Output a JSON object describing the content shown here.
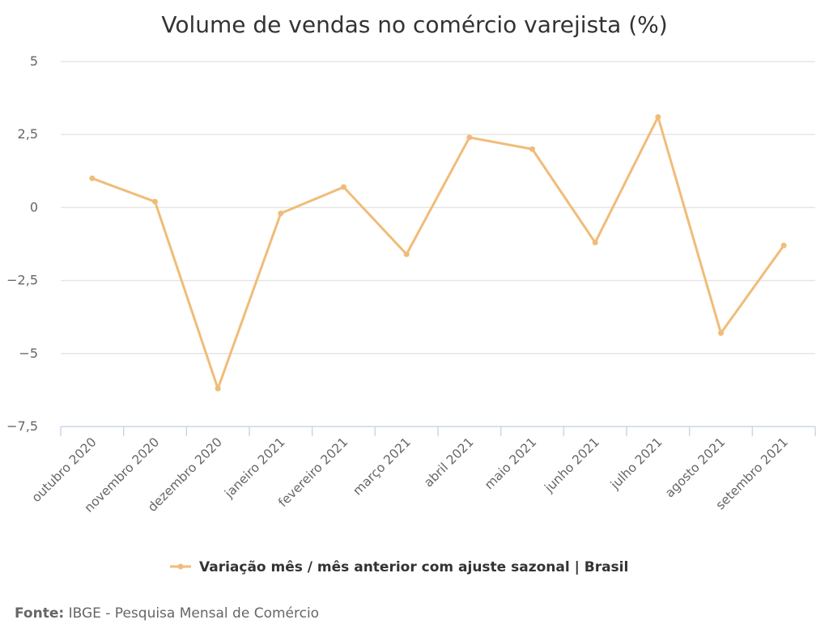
{
  "chart_data": {
    "type": "line",
    "title": "Volume de vendas no comércio varejista (%)",
    "categories": [
      "outubro 2020",
      "novembro 2020",
      "dezembro 2020",
      "janeiro 2021",
      "fevereiro 2021",
      "março 2021",
      "abril 2021",
      "maio 2021",
      "junho 2021",
      "julho 2021",
      "agosto 2021",
      "setembro 2021"
    ],
    "series": [
      {
        "name": "Variação mês / mês anterior com ajuste sazonal | Brasil",
        "values": [
          1.0,
          0.2,
          -6.2,
          -0.2,
          0.7,
          -1.6,
          2.4,
          2.0,
          -1.2,
          3.1,
          -4.3,
          -1.3
        ],
        "color": "#F1BC78"
      }
    ],
    "yticks": [
      5,
      2.5,
      0,
      -2.5,
      -5,
      -7.5
    ],
    "ytick_labels": [
      "5",
      "2,5",
      "0",
      "−2,5",
      "−5",
      "−7,5"
    ],
    "ylim": [
      -7.5,
      5
    ],
    "xlabel": "",
    "ylabel": "",
    "grid": true,
    "legend_position": "bottom"
  },
  "source": {
    "label": "Fonte:",
    "text": "IBGE - Pesquisa Mensal de Comércio"
  },
  "colors": {
    "grid": "#e6e6e6",
    "axis": "#ccd6eb"
  }
}
